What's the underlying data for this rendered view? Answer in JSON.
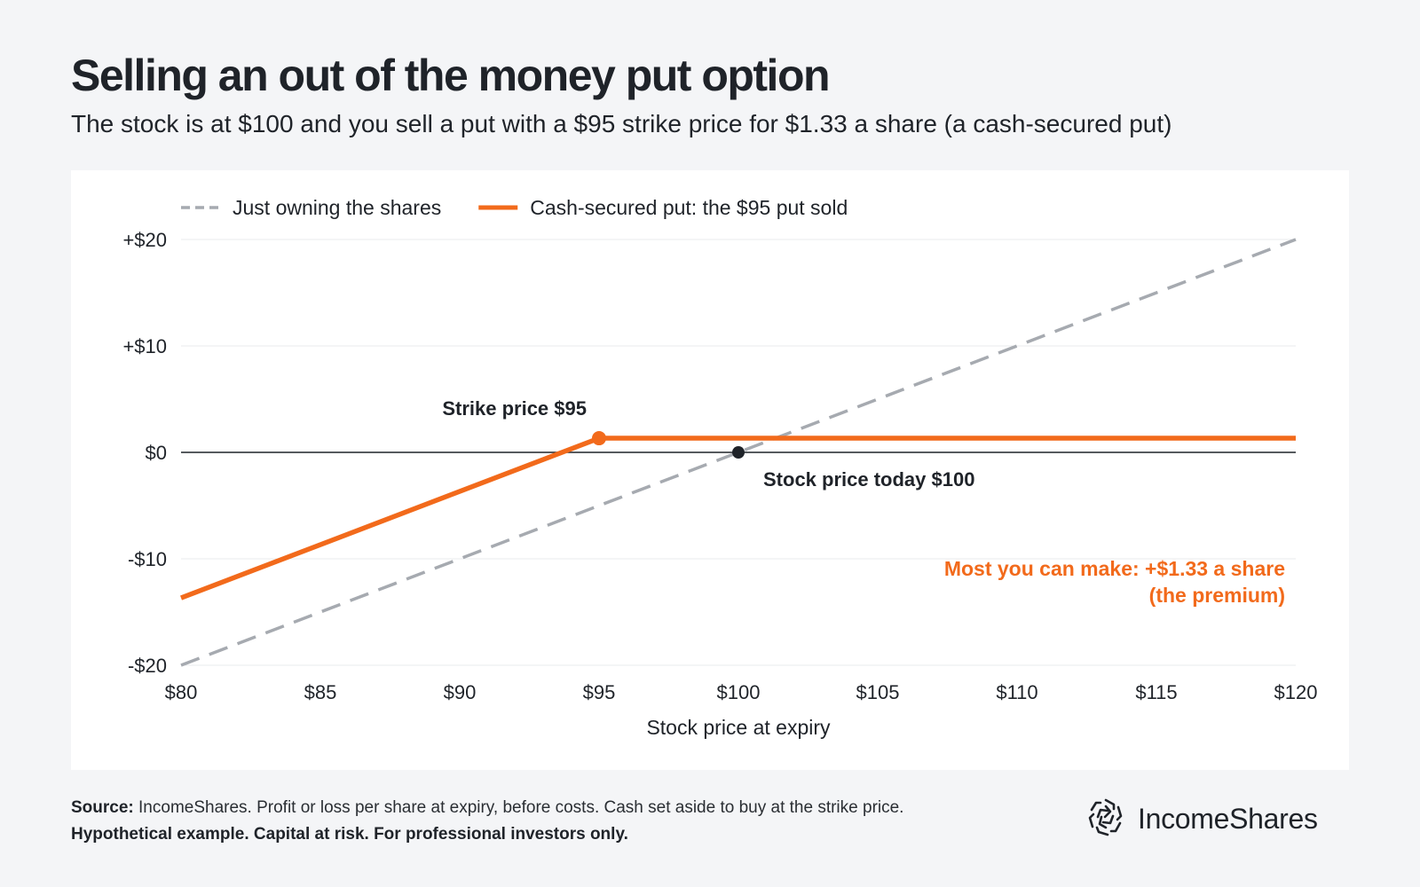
{
  "header": {
    "title": "Selling an out of the money put option",
    "subtitle": "The stock is at $100 and you sell a put with a $95 strike price for $1.33 a share (a cash-secured put)"
  },
  "colors": {
    "accent": "#f26a1b",
    "dashed_line": "#a6aab0",
    "zero_line": "#1f2329",
    "grid": "#e9ebee",
    "background": "#f4f5f7"
  },
  "chart_data": {
    "type": "line",
    "xlabel": "Stock price at expiry",
    "ylabel": "",
    "xlim": [
      80,
      120
    ],
    "ylim": [
      -20,
      20
    ],
    "x_ticks": [
      {
        "value": 80,
        "label": "$80"
      },
      {
        "value": 85,
        "label": "$85"
      },
      {
        "value": 90,
        "label": "$90"
      },
      {
        "value": 95,
        "label": "$95"
      },
      {
        "value": 100,
        "label": "$100"
      },
      {
        "value": 105,
        "label": "$105"
      },
      {
        "value": 110,
        "label": "$110"
      },
      {
        "value": 115,
        "label": "$115"
      },
      {
        "value": 120,
        "label": "$120"
      }
    ],
    "y_ticks": [
      {
        "value": 20,
        "label": "+$20"
      },
      {
        "value": 10,
        "label": "+$10"
      },
      {
        "value": 0,
        "label": "$0"
      },
      {
        "value": -10,
        "label": "-$10"
      },
      {
        "value": -20,
        "label": "-$20"
      }
    ],
    "grid": true,
    "legend_position": "top-left",
    "series": [
      {
        "name": "Just owning the shares",
        "style": "dashed",
        "color": "#a6aab0",
        "points": [
          [
            80,
            -20
          ],
          [
            120,
            20
          ]
        ]
      },
      {
        "name": "Cash-secured put: the $95 put sold",
        "style": "solid",
        "color": "#f26a1b",
        "points": [
          [
            80,
            -13.67
          ],
          [
            95,
            1.33
          ],
          [
            120,
            1.33
          ]
        ]
      }
    ],
    "markers": [
      {
        "x": 95,
        "y": 1.33,
        "color": "#f26a1b"
      },
      {
        "x": 100,
        "y": 0,
        "color": "#1f2329"
      }
    ],
    "annotations": [
      {
        "text": "Strike price $95",
        "x": 95,
        "y": 1.33,
        "color": "#1f2329"
      },
      {
        "text": "Stock price today $100",
        "x": 100,
        "y": 0,
        "color": "#1f2329"
      },
      {
        "text": "Most you can make: +$1.33 a share",
        "x": 120,
        "y": -11,
        "color": "#f26a1b"
      },
      {
        "text": "(the premium)",
        "x": 120,
        "y": -11,
        "color": "#f26a1b"
      }
    ]
  },
  "footnote": {
    "source_label": "Source:",
    "source_text": " IncomeShares. Profit or loss per share at expiry, before costs. Cash set aside to buy at the strike price. ",
    "disclaimer": "Hypothetical example. Capital at risk. For professional investors only."
  },
  "brand": {
    "name": "IncomeShares",
    "logo_icon": "incomeshares-logo-icon"
  }
}
